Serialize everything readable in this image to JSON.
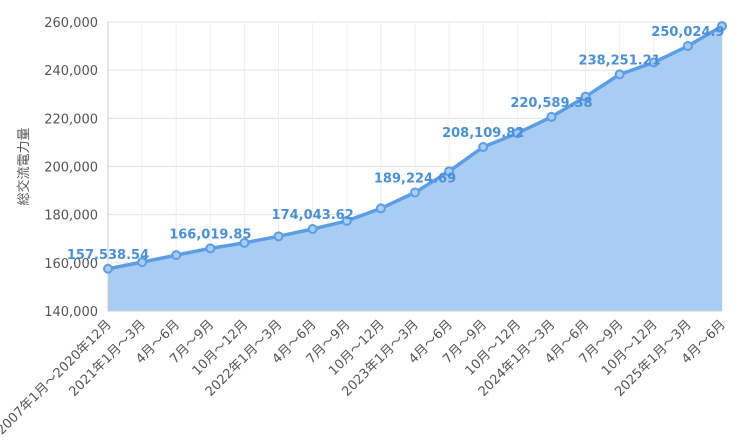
{
  "chart_data": {
    "type": "area",
    "ylabel": "総交流電力量",
    "ylim": [
      140000,
      260000
    ],
    "yticks": [
      "140,000",
      "160,000",
      "180,000",
      "200,000",
      "220,000",
      "240,000",
      "260,000"
    ],
    "categories": [
      "2007年1月〜2020年12月",
      "2021年1月〜3月",
      "4月〜6月",
      "7月〜9月",
      "10月〜12月",
      "2022年1月〜3月",
      "4月〜6月",
      "7月〜9月",
      "10月〜12月",
      "2023年1月〜3月",
      "4月〜6月",
      "7月〜9月",
      "10月〜12月",
      "2024年1月〜3月",
      "4月〜6月",
      "7月〜9月",
      "10月〜12月",
      "2025年1月〜3月",
      "4月〜6月"
    ],
    "values": [
      157538.54,
      160300,
      163200,
      166019.85,
      168300,
      171000,
      174043.62,
      177400,
      182600,
      189224.69,
      198000,
      208109.82,
      213800,
      220589.38,
      229000,
      238251.21,
      243200,
      250024.9,
      258300
    ],
    "data_labels": [
      {
        "index": 0,
        "text": "157,538.54"
      },
      {
        "index": 3,
        "text": "166,019.85"
      },
      {
        "index": 6,
        "text": "174,043.62"
      },
      {
        "index": 9,
        "text": "189,224.69"
      },
      {
        "index": 11,
        "text": "208,109.82"
      },
      {
        "index": 13,
        "text": "220,589.38"
      },
      {
        "index": 15,
        "text": "238,251.21"
      },
      {
        "index": 17,
        "text": "250,024.9"
      }
    ],
    "colors": {
      "line": "#5b9ee6",
      "fill": "#a9cdf2",
      "grid": "#e3e3e3",
      "label": "#4a90d9"
    },
    "grid": true
  }
}
